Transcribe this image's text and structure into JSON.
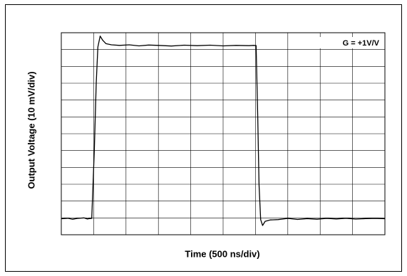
{
  "chart_data": {
    "type": "line",
    "title": "",
    "xlabel": "Time (500 ns/div)",
    "ylabel": "Output Voltage (10 mV/div)",
    "annotation": "G = +1V/V",
    "grid": true,
    "x_divisions": 10,
    "y_divisions": 12,
    "xlim": [
      0,
      10
    ],
    "ylim": [
      0,
      12
    ],
    "series": [
      {
        "line_color": "#000000",
        "points": [
          [
            0.0,
            0.95
          ],
          [
            0.2,
            0.98
          ],
          [
            0.35,
            0.92
          ],
          [
            0.5,
            0.97
          ],
          [
            0.7,
            1.0
          ],
          [
            0.8,
            0.94
          ],
          [
            0.86,
            0.96
          ],
          [
            0.94,
            0.97
          ],
          [
            1.02,
            5.0
          ],
          [
            1.08,
            9.0
          ],
          [
            1.13,
            11.15
          ],
          [
            1.2,
            11.8
          ],
          [
            1.28,
            11.55
          ],
          [
            1.38,
            11.35
          ],
          [
            1.55,
            11.28
          ],
          [
            1.8,
            11.25
          ],
          [
            2.1,
            11.28
          ],
          [
            2.4,
            11.22
          ],
          [
            2.7,
            11.27
          ],
          [
            3.0,
            11.25
          ],
          [
            3.4,
            11.21
          ],
          [
            3.8,
            11.26
          ],
          [
            4.2,
            11.23
          ],
          [
            4.6,
            11.26
          ],
          [
            5.0,
            11.22
          ],
          [
            5.4,
            11.25
          ],
          [
            5.8,
            11.23
          ],
          [
            5.94,
            11.25
          ],
          [
            6.02,
            11.24
          ],
          [
            6.07,
            7.0
          ],
          [
            6.11,
            3.0
          ],
          [
            6.16,
            0.9
          ],
          [
            6.22,
            0.55
          ],
          [
            6.3,
            0.8
          ],
          [
            6.45,
            0.88
          ],
          [
            6.7,
            0.9
          ],
          [
            7.0,
            0.97
          ],
          [
            7.3,
            0.91
          ],
          [
            7.6,
            0.96
          ],
          [
            7.9,
            0.92
          ],
          [
            8.2,
            0.97
          ],
          [
            8.5,
            0.94
          ],
          [
            8.8,
            0.98
          ],
          [
            9.1,
            0.93
          ],
          [
            9.4,
            0.96
          ],
          [
            9.7,
            0.97
          ],
          [
            10.0,
            0.95
          ]
        ]
      }
    ]
  }
}
